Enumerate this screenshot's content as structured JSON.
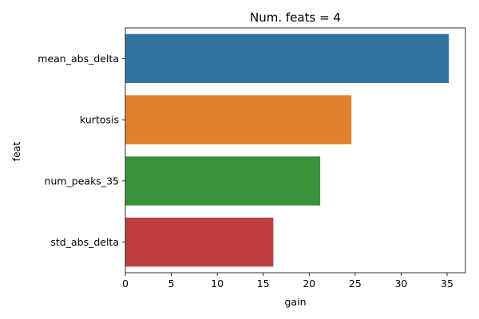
{
  "chart_data": {
    "type": "bar",
    "orientation": "horizontal",
    "title": "Num. feats = 4",
    "xlabel": "gain",
    "ylabel": "feat",
    "categories": [
      "mean_abs_delta",
      "kurtosis",
      "num_peaks_35",
      "std_abs_delta"
    ],
    "values": [
      35.2,
      24.6,
      21.2,
      16.1
    ],
    "colors": [
      "#3274a1",
      "#e1812c",
      "#3a923a",
      "#c03d3e"
    ],
    "xlim": [
      0,
      37
    ],
    "xticks": [
      0,
      5,
      10,
      15,
      20,
      25,
      30,
      35
    ],
    "grid": false,
    "legend": "none"
  }
}
